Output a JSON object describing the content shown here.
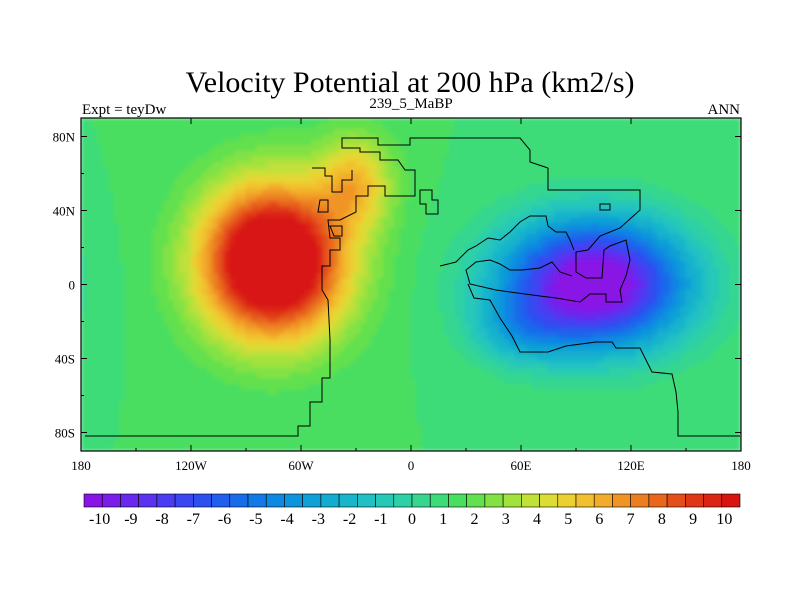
{
  "chart_data": {
    "type": "heatmap",
    "title": "Velocity Potential at 200 hPa (km2/s)",
    "left_string": "Expt = teyDw",
    "center_string": "239_5_MaBP",
    "right_string": "ANN",
    "projection": "cylindrical equidistant",
    "xlim": [
      -180,
      180
    ],
    "ylim": [
      -90,
      90
    ],
    "x_ticks": [
      -180,
      -120,
      -60,
      0,
      60,
      120,
      180
    ],
    "x_tick_labels": [
      "180",
      "120W",
      "60W",
      "0",
      "60E",
      "120E",
      "180"
    ],
    "y_ticks": [
      80,
      40,
      0,
      -40,
      -80
    ],
    "y_tick_labels": [
      "80N",
      "40N",
      "0",
      "40S",
      "80S"
    ],
    "field_extrema": [
      {
        "name": "positive center (velocity potential maximum)",
        "lon": -70,
        "lat": 5,
        "value": 10.3
      },
      {
        "name": "negative center (velocity potential minimum)",
        "lon": 100,
        "lat": 0,
        "value": -10.3
      }
    ],
    "colorbar": {
      "levels": [
        -10,
        -9.5,
        -9,
        -8.5,
        -8,
        -7.5,
        -7,
        -6.5,
        -6,
        -5.5,
        -5,
        -4.5,
        -4,
        -3.5,
        -3,
        -2.5,
        -2,
        -1.5,
        -1,
        -0.5,
        0,
        0.5,
        1,
        1.5,
        2,
        2.5,
        3,
        3.5,
        4,
        4.5,
        5,
        5.5,
        6,
        6.5,
        7,
        7.5,
        8,
        8.5,
        9,
        9.5,
        10
      ],
      "labels": [
        "-10",
        "-9",
        "-8",
        "-7",
        "-6",
        "-5",
        "-4",
        "-3",
        "-2",
        "-1",
        "0",
        "1",
        "2",
        "3",
        "4",
        "5",
        "6",
        "7",
        "8",
        "9",
        "10"
      ],
      "colors": [
        "#8a14e6",
        "#7a1eeb",
        "#6a28ee",
        "#5a32f0",
        "#4a3cf2",
        "#3a46f2",
        "#2c50f0",
        "#205eee",
        "#186cea",
        "#127ae6",
        "#0e88e2",
        "#0c94dc",
        "#0ea0d6",
        "#12acd0",
        "#18b6ca",
        "#20c0c4",
        "#26c8b8",
        "#2ed0a6",
        "#36d690",
        "#3edc78",
        "#48de60",
        "#62e04e",
        "#82e244",
        "#a2e23e",
        "#c0e03a",
        "#dcdc36",
        "#ecd032",
        "#f2c02e",
        "#f2ac2a",
        "#f09426",
        "#ec7e22",
        "#e8661e",
        "#e44e1a",
        "#e03816",
        "#dc2414",
        "#d81412"
      ]
    }
  }
}
